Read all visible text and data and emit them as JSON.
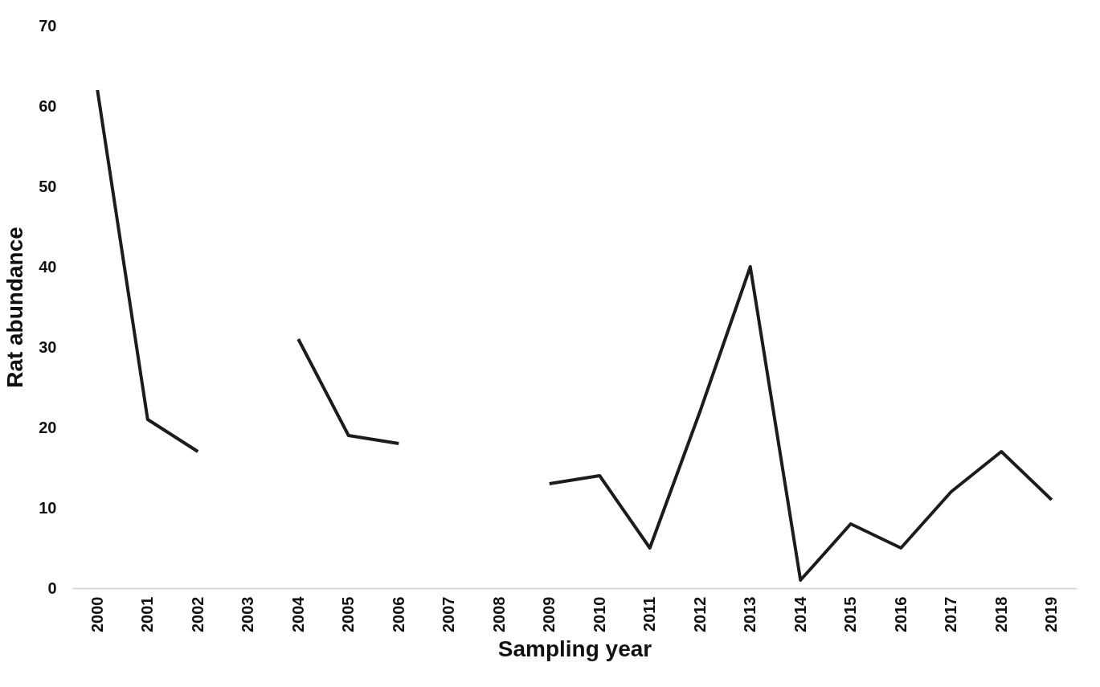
{
  "chart_data": {
    "type": "line",
    "xlabel": "Sampling year",
    "ylabel": "Rat abundance",
    "categories": [
      "2000",
      "2001",
      "2002",
      "2003",
      "2004",
      "2005",
      "2006",
      "2007",
      "2008",
      "2009",
      "2010",
      "2011",
      "2012",
      "2013",
      "2014",
      "2015",
      "2016",
      "2017",
      "2018",
      "2019"
    ],
    "series": [
      {
        "color": "#1c1c1c",
        "values": [
          62,
          21,
          17,
          null,
          31,
          19,
          18,
          null,
          null,
          13,
          14,
          5,
          22,
          40,
          1,
          8,
          5,
          12,
          17,
          11
        ]
      }
    ],
    "ylim": [
      0,
      70
    ],
    "yticks": [
      0,
      10,
      20,
      30,
      40,
      50,
      60,
      70
    ]
  }
}
